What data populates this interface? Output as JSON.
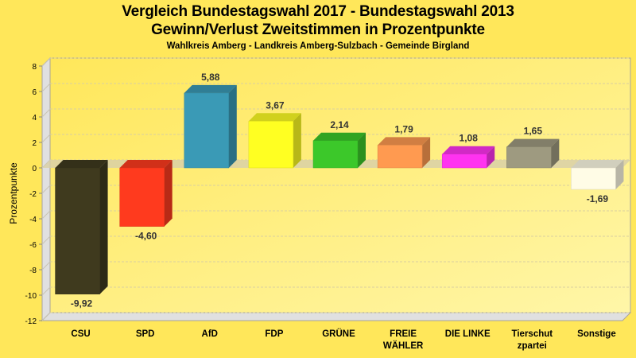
{
  "chart_data": {
    "type": "bar",
    "title": "Vergleich Bundestagswahl 2017 - Bundestagswahl 2013",
    "subtitle": "Gewinn/Verlust Zweitstimmen in Prozentpunkte",
    "subsubtitle": "Wahlkreis Amberg - Landkreis Amberg-Sulzbach - Gemeinde Birgland",
    "xlabel": "",
    "ylabel": "Prozentpunkte",
    "ylim": [
      -12,
      8
    ],
    "yticks": [
      8,
      6,
      4,
      2,
      0,
      -2,
      -4,
      -6,
      -8,
      -10,
      -12
    ],
    "grid": true,
    "categories": [
      [
        "CSU"
      ],
      [
        "SPD"
      ],
      [
        "AfD"
      ],
      [
        "FDP"
      ],
      [
        "GRÜNE"
      ],
      [
        "FREIE",
        "WÄHLER"
      ],
      [
        "DIE LINKE"
      ],
      [
        "Tierschut",
        "zpartei"
      ],
      [
        "Sonstige"
      ]
    ],
    "values": [
      -9.92,
      -4.6,
      5.88,
      3.67,
      2.14,
      1.79,
      1.08,
      1.65,
      -1.69
    ],
    "value_labels": [
      "-9,92",
      "-4,60",
      "5,88",
      "3,67",
      "2,14",
      "1,79",
      "1,08",
      "1,65",
      "-1,69"
    ],
    "colors": [
      "#3F3A1E",
      "#FF3A1E",
      "#3A9AB6",
      "#FFFF22",
      "#3CC82A",
      "#FF9A50",
      "#FF33F0",
      "#9E9A80",
      "#FFFCE6"
    ]
  }
}
